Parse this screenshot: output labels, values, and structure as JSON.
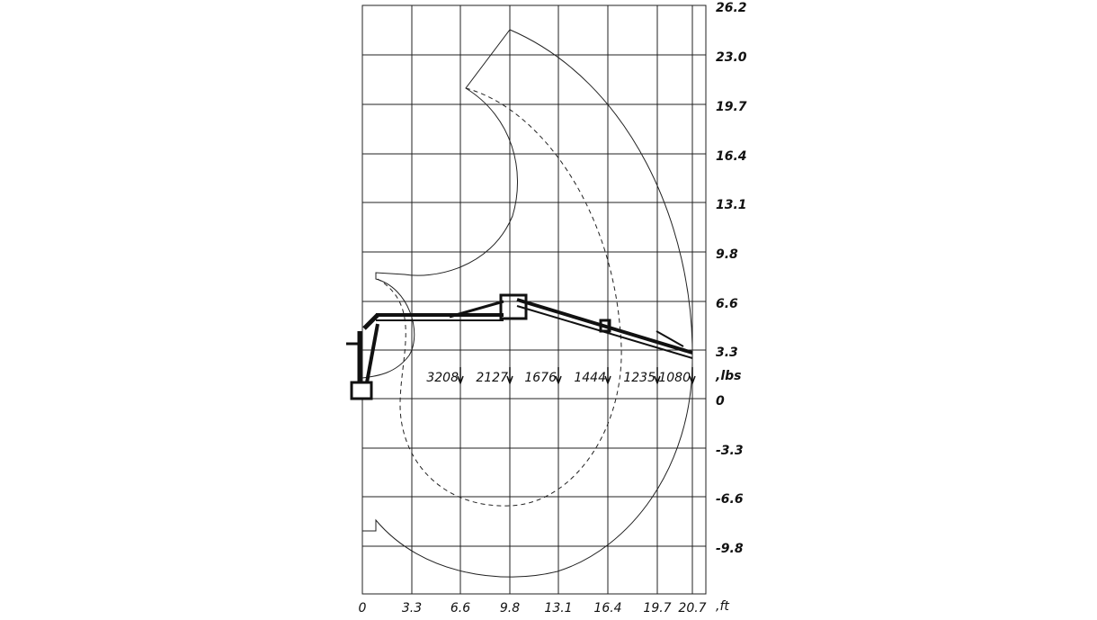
{
  "x_axis": {
    "labels": [
      "0",
      "3.3",
      "6.6",
      "9.8",
      "13.1",
      "16.4",
      "19.7",
      "20.7"
    ],
    "unit": ",ft"
  },
  "y_axis": {
    "labels": [
      "26.2",
      "23.0",
      "19.7",
      "16.4",
      "13.1",
      "9.8",
      "6.6",
      "3.3",
      "0",
      "-3.3",
      "-6.6",
      "-9.8"
    ],
    "unit": ",lbs"
  },
  "loads": [
    "3208",
    "2127",
    "1676",
    "1444",
    "1235",
    "1080"
  ]
}
